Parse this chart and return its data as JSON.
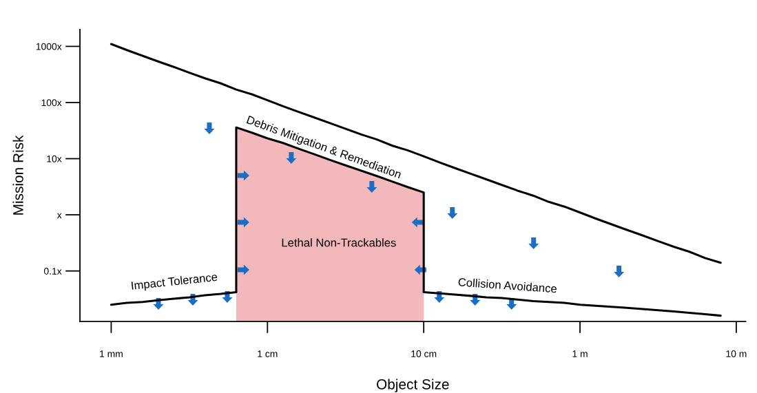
{
  "chart_data": {
    "type": "line",
    "xlabel": "Object Size",
    "ylabel": "Mission Risk",
    "log": "y",
    "ylim": [
      0.0126,
      2000
    ],
    "categories": [
      "1 mm",
      null,
      null,
      null,
      null,
      null,
      null,
      null,
      null,
      null,
      "1 cm",
      null,
      null,
      null,
      null,
      null,
      null,
      null,
      null,
      null,
      "10 cm",
      null,
      null,
      null,
      null,
      null,
      null,
      null,
      null,
      null,
      "1 m",
      null,
      null,
      null,
      null,
      null,
      null,
      null,
      null,
      null,
      "10 m"
    ],
    "yticks": [
      {
        "value": 0.1,
        "label": "0.1x"
      },
      {
        "value": 1,
        "label": "x"
      },
      {
        "value": 10,
        "label": "10x"
      },
      {
        "value": 100,
        "label": "100x"
      },
      {
        "value": 1000,
        "label": "1000x"
      }
    ],
    "grid": false,
    "legend": false,
    "series": [
      {
        "type": "area",
        "color": "#f2b8bb",
        "values": [
          null,
          null,
          null,
          null,
          null,
          null,
          null,
          null,
          36,
          29,
          23,
          19,
          15,
          12,
          9.5,
          7.6,
          6.1,
          4.9,
          3.9,
          3.1,
          2.5,
          null,
          null,
          null,
          null,
          null,
          null,
          null,
          null,
          null,
          null,
          null,
          null,
          null,
          null,
          null,
          null,
          null,
          null,
          null,
          null
        ]
      },
      {
        "color": "#000000",
        "values": [
          1100,
          860,
          680,
          540,
          430,
          340,
          270,
          220,
          170,
          140,
          110,
          86,
          68,
          54,
          43,
          34,
          27,
          22,
          17,
          14,
          11,
          8.6,
          6.8,
          5.4,
          4.3,
          3.4,
          2.7,
          2.2,
          1.7,
          1.4,
          1.1,
          0.86,
          0.68,
          0.54,
          0.43,
          0.34,
          0.27,
          0.22,
          0.17,
          0.14,
          null
        ]
      },
      {
        "color": "#000000",
        "values": [
          0.025,
          0.027,
          0.028,
          0.03,
          0.032,
          0.034,
          0.037,
          0.039,
          0.042,
          null,
          null,
          null,
          null,
          null,
          null,
          null,
          null,
          null,
          null,
          null,
          0.042,
          0.04,
          0.038,
          0.036,
          0.034,
          0.033,
          0.031,
          0.029,
          0.028,
          0.027,
          0.025,
          0.024,
          0.023,
          0.022,
          0.021,
          0.02,
          0.019,
          0.018,
          0.017,
          0.016,
          null
        ]
      }
    ],
    "annotations": [
      "Debris Mitigation & Remediation",
      "Impact Tolerance",
      "Lethal Non-Trackables",
      "Collision Avoidance"
    ]
  }
}
